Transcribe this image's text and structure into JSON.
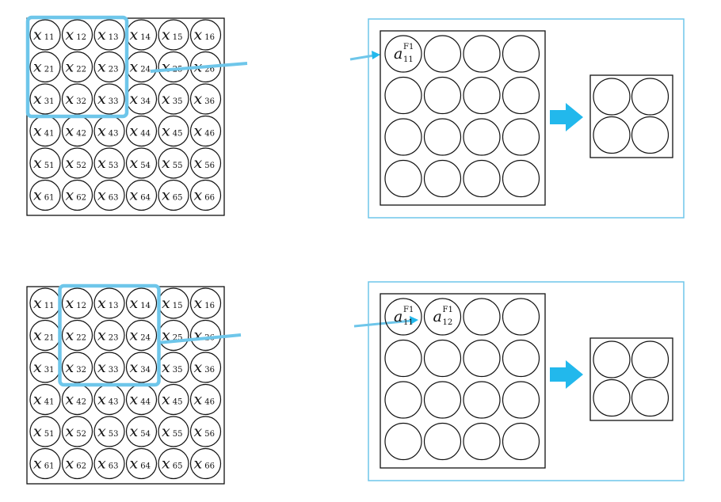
{
  "colors": {
    "highlight": "#6ec6ea",
    "arrow": "#22b8ec",
    "line": "#111111"
  },
  "icons": {
    "flow_arrow": "right-arrow-icon"
  },
  "input_grid": {
    "symbol": "x",
    "rows": [
      [
        "11",
        "12",
        "13",
        "14",
        "15",
        "16"
      ],
      [
        "21",
        "22",
        "23",
        "24",
        "25",
        "26"
      ],
      [
        "31",
        "32",
        "33",
        "34",
        "35",
        "36"
      ],
      [
        "41",
        "42",
        "43",
        "44",
        "45",
        "46"
      ],
      [
        "51",
        "52",
        "53",
        "54",
        "55",
        "56"
      ],
      [
        "61",
        "62",
        "63",
        "64",
        "65",
        "66"
      ]
    ]
  },
  "panels": [
    {
      "window": {
        "row": 1,
        "col": 1,
        "size": 3
      },
      "feature_labels": [
        {
          "row": 1,
          "col": 1,
          "symbol": "a",
          "sup": "F1",
          "sub": "11"
        }
      ]
    },
    {
      "window": {
        "row": 1,
        "col": 2,
        "size": 3
      },
      "feature_labels": [
        {
          "row": 1,
          "col": 1,
          "symbol": "a",
          "sup": "F1",
          "sub": "11"
        },
        {
          "row": 1,
          "col": 2,
          "symbol": "a",
          "sup": "F1",
          "sub": "12"
        }
      ]
    }
  ],
  "feature_map": {
    "rows": 4,
    "cols": 4
  },
  "pooled_map": {
    "rows": 2,
    "cols": 2
  }
}
